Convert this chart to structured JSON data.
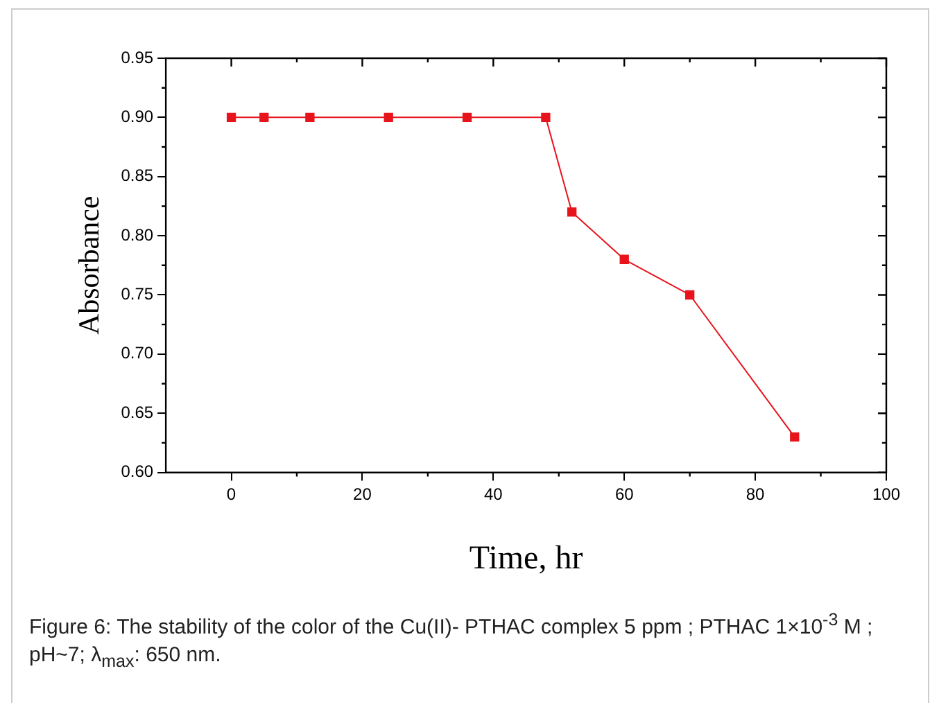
{
  "chart_data": {
    "type": "line",
    "xlabel": "Time, hr",
    "ylabel": "Absorbance",
    "x": [
      0,
      5,
      12,
      24,
      36,
      48,
      52,
      60,
      70,
      86
    ],
    "series": [
      {
        "color": "#e8141c",
        "values": [
          0.9,
          0.9,
          0.9,
          0.9,
          0.9,
          0.9,
          0.82,
          0.78,
          0.75,
          0.63
        ]
      }
    ],
    "xlim": [
      -10,
      100
    ],
    "xticks": [
      0,
      20,
      40,
      60,
      80,
      100
    ],
    "ylim": [
      0.6,
      0.95
    ],
    "yticks": [
      {
        "value": 0.6,
        "label": "0.60"
      },
      {
        "value": 0.65,
        "label": "0.65"
      },
      {
        "value": 0.7,
        "label": "0.70"
      },
      {
        "value": 0.75,
        "label": "0.75"
      },
      {
        "value": 0.8,
        "label": "0.80"
      },
      {
        "value": 0.85,
        "label": "0.85"
      },
      {
        "value": 0.9,
        "label": "0.90"
      },
      {
        "value": 0.95,
        "label": "0.95"
      }
    ],
    "marker": "square",
    "line_style": "solid",
    "grid": false,
    "legend": false,
    "annotations": [
      "Figure 6: The stability of the color of the Cu(II)- PTHAC  complex 5 ppm ; PTHAC 1×10$^{-3}$ M ; pH~7; λ$_{max}$: 650 nm."
    ]
  }
}
